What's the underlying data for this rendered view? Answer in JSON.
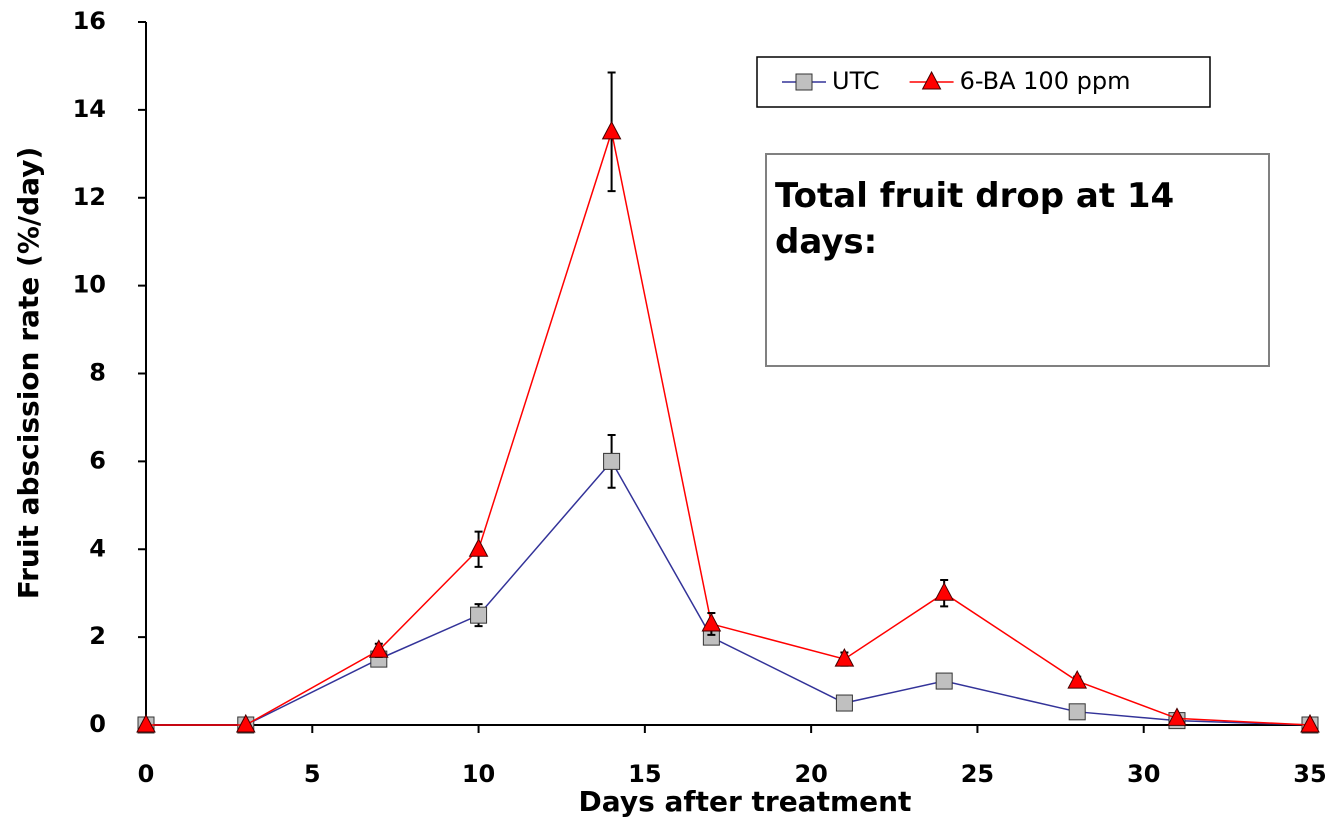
{
  "chart_data": {
    "type": "line",
    "xlabel": "Days after treatment",
    "ylabel": "Fruit abscission rate (%/day)",
    "annotation": "Total fruit drop at 14 days:",
    "x": [
      0,
      3,
      7,
      10,
      14,
      17,
      21,
      24,
      28,
      31,
      35
    ],
    "series": [
      {
        "name": "UTC",
        "color": "#333399",
        "marker": "square",
        "marker_color": "#c0c0c0",
        "values": [
          0,
          0,
          1.5,
          2.5,
          6,
          2,
          0.5,
          1,
          0.3,
          0.1,
          0
        ],
        "errors": [
          0,
          0,
          0.1,
          0.25,
          0.6,
          0.15,
          0.05,
          0.05,
          0.05,
          0.02,
          0
        ]
      },
      {
        "name": "6-BA 100 ppm",
        "color": "#ff0000",
        "marker": "triangle",
        "marker_color": "#ff0000",
        "values": [
          0,
          0,
          1.7,
          4,
          13.5,
          2.3,
          1.5,
          3,
          1,
          0.15,
          0
        ],
        "errors": [
          0,
          0,
          0.15,
          0.4,
          1.35,
          0.25,
          0.15,
          0.3,
          0.1,
          0.05,
          0
        ]
      }
    ],
    "xlim": [
      0,
      35
    ],
    "xticks": [
      0,
      5,
      10,
      15,
      20,
      25,
      30,
      35
    ],
    "ylim": [
      0,
      16
    ],
    "yticks": [
      0,
      2,
      4,
      6,
      8,
      10,
      12,
      14,
      16
    ],
    "grid": false,
    "legend": "top-right"
  }
}
